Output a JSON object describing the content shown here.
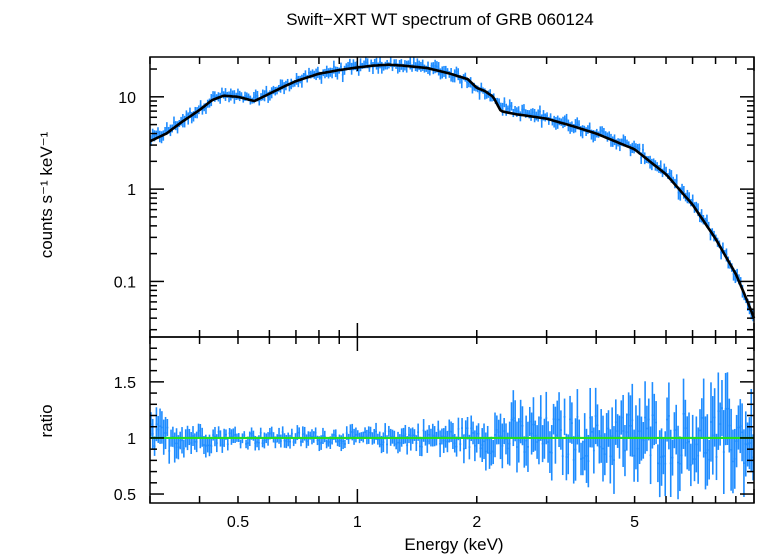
{
  "chart_data": [
    {
      "type": "line",
      "title": "Swift−XRT WT spectrum of GRB 060124",
      "ylabel": "counts s⁻¹ keV⁻¹",
      "xscale": "log",
      "yscale": "log",
      "xlim": [
        0.3,
        10
      ],
      "ylim": [
        0.025,
        27
      ],
      "yticks": [
        0.1,
        1,
        10
      ],
      "ytick_labels": [
        "0.1",
        "1",
        "10"
      ],
      "series": [
        {
          "color": "#1e8cff",
          "style": "data-points-with-errors",
          "x": [
            0.3,
            0.33,
            0.36,
            0.4,
            0.43,
            0.46,
            0.5,
            0.55,
            0.6,
            0.65,
            0.7,
            0.8,
            0.9,
            1.0,
            1.1,
            1.2,
            1.3,
            1.5,
            1.7,
            1.9,
            2.1,
            2.3,
            2.5,
            3.0,
            3.5,
            4.0,
            5.0,
            6.0,
            7.0,
            8.0,
            9.0,
            9.5,
            10.0
          ],
          "y": [
            3.5,
            4.2,
            5.5,
            7.5,
            9.5,
            10.5,
            10.0,
            9.2,
            11.0,
            13.0,
            15.0,
            18.0,
            19.5,
            21.0,
            22.0,
            22.5,
            22.0,
            21.0,
            18.5,
            15.0,
            11.0,
            8.5,
            7.0,
            6.0,
            5.0,
            4.2,
            2.8,
            1.5,
            0.7,
            0.3,
            0.12,
            0.07,
            0.04
          ],
          "rel_error": 0.12
        },
        {
          "color": "#000000",
          "style": "model",
          "x": [
            0.3,
            0.33,
            0.36,
            0.4,
            0.43,
            0.46,
            0.5,
            0.55,
            0.6,
            0.65,
            0.7,
            0.8,
            0.9,
            1.0,
            1.1,
            1.2,
            1.3,
            1.5,
            1.7,
            1.9,
            2.0,
            2.1,
            2.2,
            2.3,
            2.5,
            3.0,
            3.5,
            4.0,
            5.0,
            6.0,
            7.0,
            8.0,
            9.0,
            9.5,
            10.0
          ],
          "y": [
            3.3,
            4.0,
            5.3,
            7.2,
            9.2,
            10.3,
            10.0,
            9.0,
            10.8,
            12.8,
            14.8,
            17.8,
            19.5,
            20.8,
            21.8,
            22.3,
            21.8,
            20.5,
            18.0,
            15.5,
            12.5,
            11.5,
            10.0,
            7.0,
            6.5,
            5.8,
            4.8,
            4.0,
            2.7,
            1.45,
            0.68,
            0.29,
            0.12,
            0.07,
            0.04
          ]
        }
      ]
    },
    {
      "type": "line",
      "xlabel": "Energy (keV)",
      "ylabel": "ratio",
      "xscale": "log",
      "xlim": [
        0.3,
        10
      ],
      "ylim": [
        0.42,
        1.9
      ],
      "xticks": [
        0.5,
        1,
        2,
        5
      ],
      "xtick_labels": [
        "0.5",
        "1",
        "2",
        "5"
      ],
      "yticks": [
        0.5,
        1,
        1.5
      ],
      "ytick_labels": [
        "0.5",
        "1",
        "1.5"
      ],
      "reference_line": {
        "y": 1,
        "color": "#22dd22"
      },
      "series": [
        {
          "color": "#1e8cff",
          "style": "data-points-with-errors",
          "x": [
            0.3,
            0.4,
            0.5,
            0.7,
            1.0,
            1.5,
            2.0,
            2.5,
            3.0,
            4.0,
            5.0,
            6.0,
            7.0,
            8.0,
            9.0,
            10.0
          ],
          "y": [
            1.0,
            1.0,
            1.0,
            1.0,
            1.0,
            1.0,
            1.0,
            1.0,
            1.0,
            1.0,
            1.0,
            1.0,
            1.0,
            1.0,
            1.0,
            1.0
          ],
          "scatter": [
            0.25,
            0.15,
            0.1,
            0.1,
            0.1,
            0.15,
            0.2,
            0.35,
            0.35,
            0.4,
            0.45,
            0.45,
            0.45,
            0.5,
            0.5,
            0.5
          ]
        }
      ]
    }
  ]
}
